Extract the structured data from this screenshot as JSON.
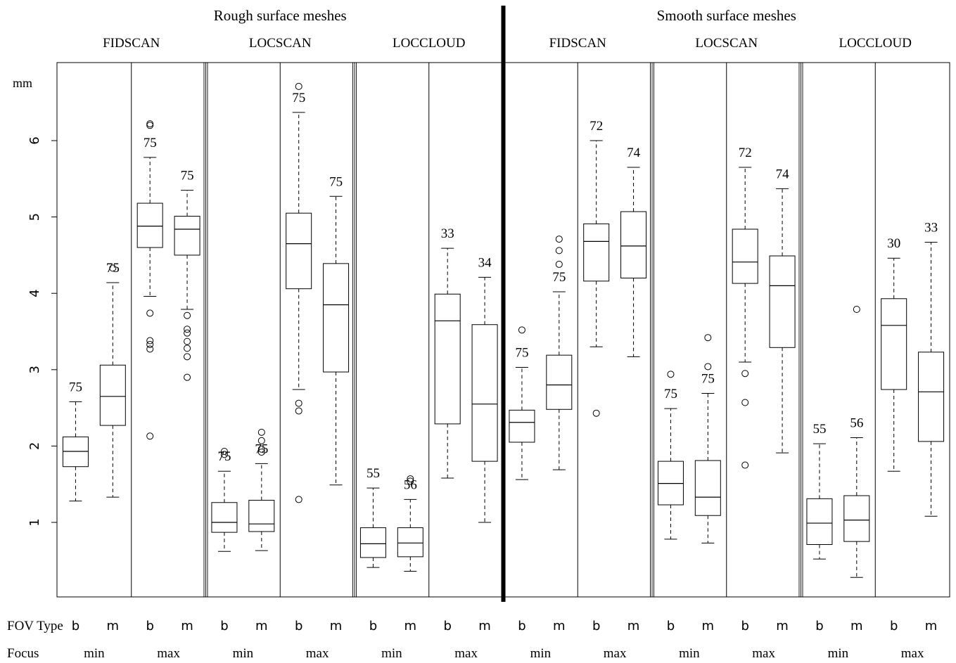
{
  "chart_data": {
    "type": "boxplot",
    "y_unit_label": "mm",
    "ylim": [
      0,
      6.8
    ],
    "yticks": [
      "1",
      "2",
      "3",
      "4",
      "5",
      "6"
    ],
    "row_labels": {
      "fov": "FOV Type",
      "focus": "Focus"
    },
    "panels": [
      {
        "title": "Rough surface meshes",
        "groups": [
          {
            "method": "FIDSCAN",
            "boxes": [
              {
                "fov": "b",
                "focus": "min",
                "n": "75",
                "whislo": 1.28,
                "q1": 1.73,
                "med": 1.93,
                "q3": 2.12,
                "whishi": 2.58,
                "outliers": []
              },
              {
                "fov": "m",
                "focus": "min",
                "n": "75",
                "whislo": 1.33,
                "q1": 2.27,
                "med": 2.65,
                "q3": 3.06,
                "whishi": 4.14,
                "outliers": [
                  4.33
                ]
              },
              {
                "fov": "b",
                "focus": "max",
                "n": "75",
                "whislo": 3.96,
                "q1": 4.6,
                "med": 4.88,
                "q3": 5.18,
                "whishi": 5.78,
                "outliers": [
                  6.2,
                  6.22,
                  3.74,
                  3.38,
                  3.33,
                  3.27,
                  2.13
                ]
              },
              {
                "fov": "m",
                "focus": "max",
                "n": "75",
                "whislo": 3.79,
                "q1": 4.5,
                "med": 4.84,
                "q3": 5.01,
                "whishi": 5.35,
                "outliers": [
                  3.71,
                  3.53,
                  3.48,
                  3.37,
                  3.28,
                  3.17,
                  2.9
                ]
              }
            ]
          },
          {
            "method": "LOCSCAN",
            "boxes": [
              {
                "fov": "b",
                "focus": "min",
                "n": "75",
                "whislo": 0.62,
                "q1": 0.87,
                "med": 1.0,
                "q3": 1.26,
                "whishi": 1.67,
                "outliers": [
                  1.93,
                  1.89
                ]
              },
              {
                "fov": "m",
                "focus": "min",
                "n": "75",
                "whislo": 0.63,
                "q1": 0.88,
                "med": 0.98,
                "q3": 1.29,
                "whishi": 1.77,
                "outliers": [
                  2.18,
                  2.07,
                  1.96,
                  1.92
                ]
              },
              {
                "fov": "b",
                "focus": "max",
                "n": "75",
                "whislo": 2.74,
                "q1": 4.06,
                "med": 4.65,
                "q3": 5.05,
                "whishi": 6.37,
                "outliers": [
                  6.71,
                  2.56,
                  2.46,
                  1.3
                ]
              },
              {
                "fov": "m",
                "focus": "max",
                "n": "75",
                "whislo": 1.49,
                "q1": 2.97,
                "med": 3.85,
                "q3": 4.39,
                "whishi": 5.27,
                "outliers": []
              }
            ]
          },
          {
            "method": "LOCCLOUD",
            "boxes": [
              {
                "fov": "b",
                "focus": "min",
                "n": "55",
                "whislo": 0.41,
                "q1": 0.54,
                "med": 0.72,
                "q3": 0.93,
                "whishi": 1.45,
                "outliers": []
              },
              {
                "fov": "m",
                "focus": "min",
                "n": "56",
                "whislo": 0.36,
                "q1": 0.55,
                "med": 0.73,
                "q3": 0.93,
                "whishi": 1.3,
                "outliers": [
                  1.57,
                  1.54
                ]
              },
              {
                "fov": "b",
                "focus": "max",
                "n": "33",
                "whislo": 1.58,
                "q1": 2.29,
                "med": 3.64,
                "q3": 3.99,
                "whishi": 4.59,
                "outliers": []
              },
              {
                "fov": "m",
                "focus": "max",
                "n": "34",
                "whislo": 1.0,
                "q1": 1.8,
                "med": 2.55,
                "q3": 3.59,
                "whishi": 4.21,
                "outliers": []
              }
            ]
          }
        ]
      },
      {
        "title": "Smooth surface meshes",
        "groups": [
          {
            "method": "FIDSCAN",
            "boxes": [
              {
                "fov": "b",
                "focus": "min",
                "n": "75",
                "whislo": 1.56,
                "q1": 2.05,
                "med": 2.31,
                "q3": 2.47,
                "whishi": 3.03,
                "outliers": [
                  3.52
                ]
              },
              {
                "fov": "m",
                "focus": "min",
                "n": "75",
                "whislo": 1.69,
                "q1": 2.48,
                "med": 2.8,
                "q3": 3.19,
                "whishi": 4.02,
                "outliers": [
                  4.71,
                  4.56,
                  4.38
                ]
              },
              {
                "fov": "b",
                "focus": "max",
                "n": "72",
                "whislo": 3.3,
                "q1": 4.16,
                "med": 4.68,
                "q3": 4.91,
                "whishi": 6.0,
                "outliers": [
                  2.43
                ]
              },
              {
                "fov": "m",
                "focus": "max",
                "n": "74",
                "whislo": 3.17,
                "q1": 4.2,
                "med": 4.62,
                "q3": 5.07,
                "whishi": 5.65,
                "outliers": []
              }
            ]
          },
          {
            "method": "LOCSCAN",
            "boxes": [
              {
                "fov": "b",
                "focus": "min",
                "n": "75",
                "whislo": 0.78,
                "q1": 1.23,
                "med": 1.51,
                "q3": 1.8,
                "whishi": 2.49,
                "outliers": [
                  2.94
                ]
              },
              {
                "fov": "m",
                "focus": "min",
                "n": "75",
                "whislo": 0.73,
                "q1": 1.09,
                "med": 1.33,
                "q3": 1.81,
                "whishi": 2.69,
                "outliers": [
                  3.42,
                  3.04
                ]
              },
              {
                "fov": "b",
                "focus": "max",
                "n": "72",
                "whislo": 3.1,
                "q1": 4.13,
                "med": 4.41,
                "q3": 4.84,
                "whishi": 5.65,
                "outliers": [
                  2.95,
                  2.57,
                  1.75
                ]
              },
              {
                "fov": "m",
                "focus": "max",
                "n": "74",
                "whislo": 1.91,
                "q1": 3.29,
                "med": 4.1,
                "q3": 4.49,
                "whishi": 5.37,
                "outliers": []
              }
            ]
          },
          {
            "method": "LOCCLOUD",
            "boxes": [
              {
                "fov": "b",
                "focus": "min",
                "n": "55",
                "whislo": 0.52,
                "q1": 0.71,
                "med": 0.99,
                "q3": 1.31,
                "whishi": 2.03,
                "outliers": []
              },
              {
                "fov": "m",
                "focus": "min",
                "n": "56",
                "whislo": 0.28,
                "q1": 0.75,
                "med": 1.03,
                "q3": 1.35,
                "whishi": 2.11,
                "outliers": [
                  3.79
                ]
              },
              {
                "fov": "b",
                "focus": "max",
                "n": "30",
                "whislo": 1.67,
                "q1": 2.74,
                "med": 3.58,
                "q3": 3.93,
                "whishi": 4.46,
                "outliers": []
              },
              {
                "fov": "m",
                "focus": "max",
                "n": "33",
                "whislo": 1.08,
                "q1": 2.06,
                "med": 2.71,
                "q3": 3.23,
                "whishi": 4.67,
                "outliers": []
              }
            ]
          }
        ]
      }
    ]
  }
}
